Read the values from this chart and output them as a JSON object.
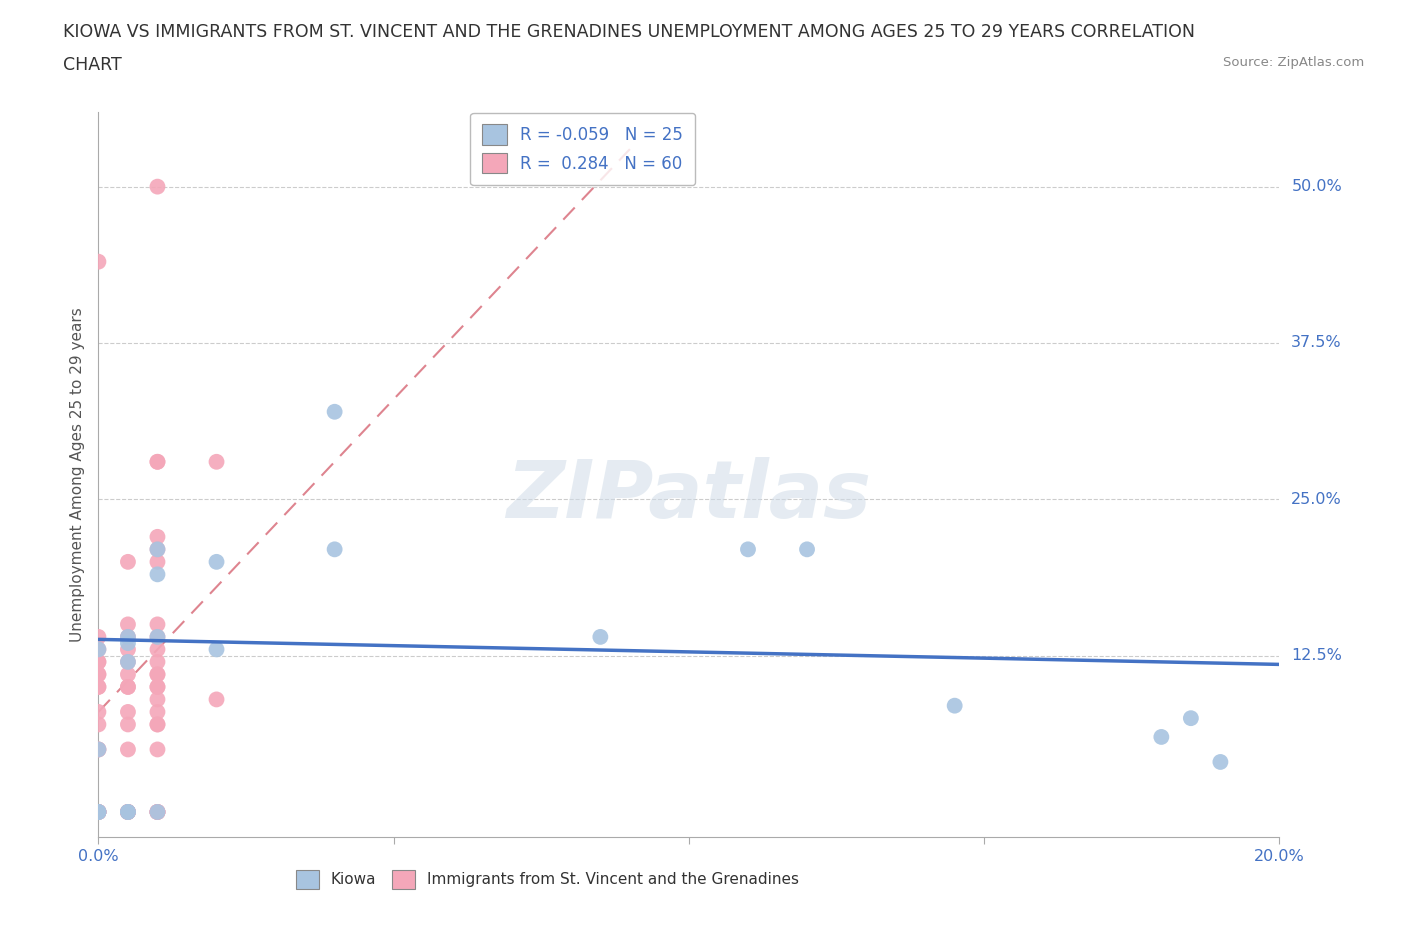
{
  "title_line1": "KIOWA VS IMMIGRANTS FROM ST. VINCENT AND THE GRENADINES UNEMPLOYMENT AMONG AGES 25 TO 29 YEARS CORRELATION",
  "title_line2": "CHART",
  "source_text": "Source: ZipAtlas.com",
  "ylabel": "Unemployment Among Ages 25 to 29 years",
  "xlim": [
    0.0,
    0.2
  ],
  "ylim": [
    -0.02,
    0.56
  ],
  "kiowa_color": "#a8c4e0",
  "svg_color": "#f4a7b9",
  "trend_kiowa_color": "#4472c4",
  "trend_svg_color": "#d05060",
  "background_color": "#ffffff",
  "grid_color": "#cccccc",
  "kiowa_x": [
    0.0,
    0.0,
    0.0,
    0.0,
    0.0,
    0.005,
    0.005,
    0.005,
    0.005,
    0.005,
    0.01,
    0.01,
    0.01,
    0.01,
    0.02,
    0.02,
    0.04,
    0.04,
    0.085,
    0.11,
    0.12,
    0.145,
    0.18,
    0.185,
    0.19
  ],
  "kiowa_y": [
    0.0,
    0.0,
    0.0,
    0.05,
    0.13,
    0.0,
    0.0,
    0.12,
    0.135,
    0.14,
    0.0,
    0.14,
    0.19,
    0.21,
    0.13,
    0.2,
    0.21,
    0.32,
    0.14,
    0.21,
    0.21,
    0.085,
    0.06,
    0.075,
    0.04
  ],
  "svg_x": [
    0.0,
    0.0,
    0.0,
    0.0,
    0.0,
    0.0,
    0.0,
    0.0,
    0.0,
    0.0,
    0.0,
    0.0,
    0.0,
    0.0,
    0.0,
    0.0,
    0.0,
    0.0,
    0.0,
    0.005,
    0.005,
    0.005,
    0.005,
    0.005,
    0.005,
    0.005,
    0.005,
    0.005,
    0.005,
    0.005,
    0.005,
    0.005,
    0.005,
    0.005,
    0.005,
    0.01,
    0.01,
    0.01,
    0.01,
    0.01,
    0.01,
    0.01,
    0.01,
    0.01,
    0.01,
    0.01,
    0.01,
    0.01,
    0.01,
    0.01,
    0.01,
    0.01,
    0.01,
    0.01,
    0.01,
    0.01,
    0.01,
    0.01,
    0.02,
    0.02
  ],
  "svg_y": [
    0.0,
    0.0,
    0.0,
    0.0,
    0.0,
    0.0,
    0.05,
    0.05,
    0.07,
    0.08,
    0.1,
    0.1,
    0.11,
    0.11,
    0.12,
    0.12,
    0.13,
    0.14,
    0.44,
    0.0,
    0.0,
    0.0,
    0.0,
    0.0,
    0.05,
    0.07,
    0.08,
    0.1,
    0.1,
    0.11,
    0.12,
    0.13,
    0.14,
    0.15,
    0.2,
    0.0,
    0.0,
    0.0,
    0.0,
    0.05,
    0.07,
    0.08,
    0.1,
    0.11,
    0.12,
    0.13,
    0.14,
    0.15,
    0.2,
    0.21,
    0.22,
    0.28,
    0.5,
    0.07,
    0.09,
    0.1,
    0.11,
    0.28,
    0.09,
    0.28
  ],
  "kiowa_trend_x": [
    0.0,
    0.2
  ],
  "kiowa_trend_y": [
    0.138,
    0.118
  ],
  "svg_trend_x": [
    0.0,
    0.09
  ],
  "svg_trend_y": [
    0.08,
    0.53
  ],
  "ytick_vals": [
    0.125,
    0.25,
    0.375,
    0.5
  ],
  "ytick_labels": [
    "12.5%",
    "25.0%",
    "37.5%",
    "50.0%"
  ],
  "xtick_vals": [
    0.0,
    0.05,
    0.1,
    0.15,
    0.2
  ],
  "xtick_labels": [
    "0.0%",
    "",
    "",
    "",
    "20.0%"
  ],
  "legend_r1": "R = -0.059   N = 25",
  "legend_r2": "R =  0.284   N = 60",
  "legend_kiowa_label": "Kiowa",
  "legend_svg_label": "Immigrants from St. Vincent and the Grenadines",
  "watermark": "ZIPatlas"
}
